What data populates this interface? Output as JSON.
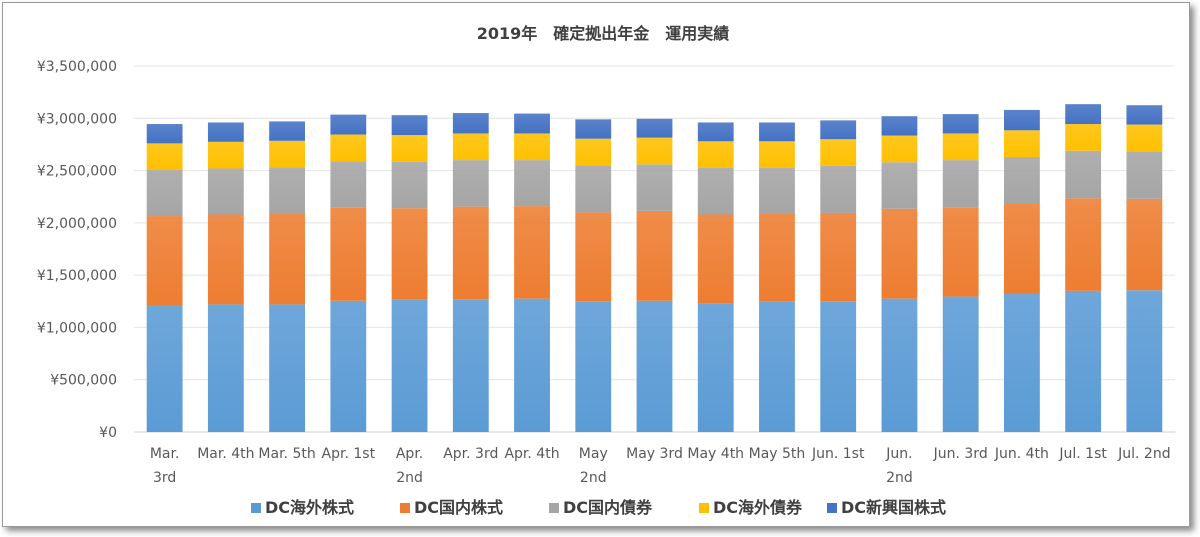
{
  "chart_data": {
    "type": "bar",
    "stacked": true,
    "title": "2019年　確定拠出年金　運用実績",
    "xlabel": "",
    "ylabel": "",
    "ylim": [
      0,
      3500000
    ],
    "yticks": [
      0,
      500000,
      1000000,
      1500000,
      2000000,
      2500000,
      3000000,
      3500000
    ],
    "ytick_labels": [
      "¥0",
      "¥500,000",
      "¥1,000,000",
      "¥1,500,000",
      "¥2,000,000",
      "¥2,500,000",
      "¥3,000,000",
      "¥3,500,000"
    ],
    "grid": true,
    "legend_position": "bottom",
    "categories": [
      "Mar. 3rd",
      "Mar. 4th",
      "Mar. 5th",
      "Apr. 1st",
      "Apr. 2nd",
      "Apr. 3rd",
      "Apr. 4th",
      "May 2nd",
      "May 3rd",
      "May 4th",
      "May 5th",
      "Jun. 1st",
      "Jun. 2nd",
      "Jun. 3rd",
      "Jun. 4th",
      "Jul. 1st",
      "Jul. 2nd"
    ],
    "category_lines": [
      [
        "Mar.",
        "3rd"
      ],
      [
        "Mar. 4th"
      ],
      [
        "Mar. 5th"
      ],
      [
        "Apr. 1st"
      ],
      [
        "Apr.",
        "2nd"
      ],
      [
        "Apr. 3rd"
      ],
      [
        "Apr. 4th"
      ],
      [
        "May",
        "2nd"
      ],
      [
        "May 3rd"
      ],
      [
        "May 4th"
      ],
      [
        "May 5th"
      ],
      [
        "Jun. 1st"
      ],
      [
        "Jun.",
        "2nd"
      ],
      [
        "Jun. 3rd"
      ],
      [
        "Jun. 4th"
      ],
      [
        "Jul. 1st"
      ],
      [
        "Jul. 2nd"
      ]
    ],
    "series": [
      {
        "name": "DC海外株式",
        "color": "#5B9BD5",
        "values": [
          1210000,
          1220000,
          1220000,
          1255000,
          1265000,
          1270000,
          1275000,
          1250000,
          1255000,
          1230000,
          1245000,
          1250000,
          1275000,
          1295000,
          1320000,
          1350000,
          1355000
        ]
      },
      {
        "name": "DC国内株式",
        "color": "#ED7D31",
        "values": [
          855000,
          860000,
          865000,
          890000,
          875000,
          885000,
          885000,
          850000,
          860000,
          850000,
          840000,
          845000,
          860000,
          855000,
          860000,
          885000,
          875000
        ]
      },
      {
        "name": "DC国内債券",
        "color": "#A5A5A5",
        "values": [
          440000,
          440000,
          445000,
          445000,
          445000,
          445000,
          440000,
          450000,
          445000,
          445000,
          440000,
          450000,
          445000,
          450000,
          450000,
          455000,
          455000
        ]
      },
      {
        "name": "DC海外債券",
        "color": "#FFC000",
        "values": [
          255000,
          255000,
          255000,
          255000,
          255000,
          255000,
          255000,
          255000,
          255000,
          255000,
          255000,
          255000,
          255000,
          255000,
          255000,
          255000,
          255000
        ]
      },
      {
        "name": "DC新興国株式",
        "color": "#4472C4",
        "values": [
          185000,
          185000,
          185000,
          190000,
          190000,
          195000,
          190000,
          185000,
          180000,
          180000,
          180000,
          180000,
          185000,
          185000,
          195000,
          190000,
          185000
        ]
      }
    ]
  }
}
